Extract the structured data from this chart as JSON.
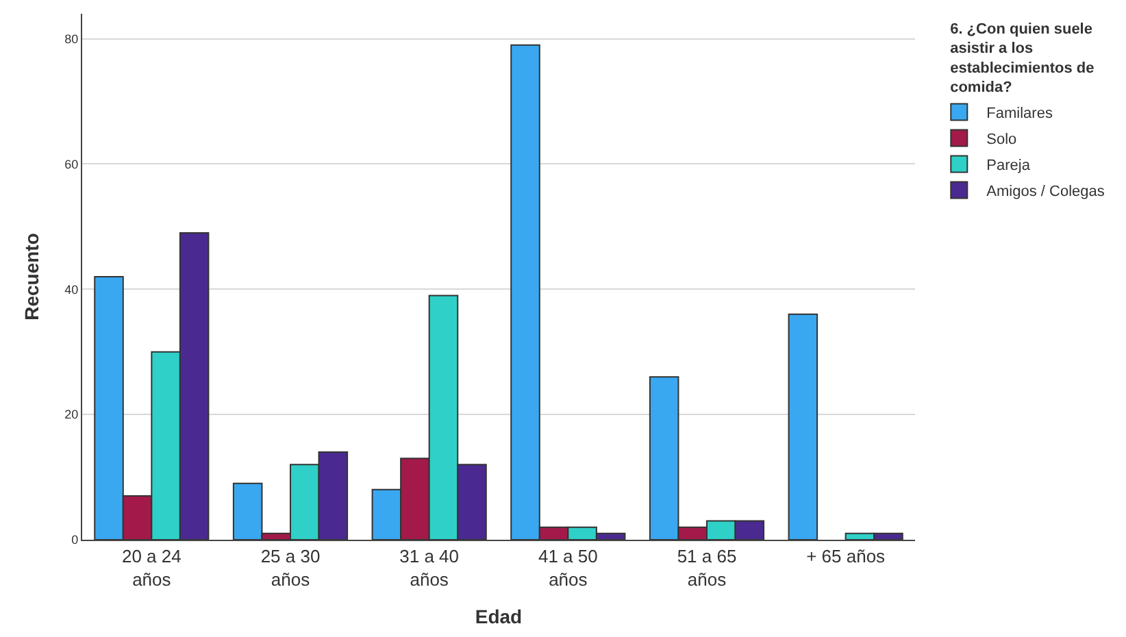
{
  "chart_data": {
    "type": "bar",
    "xlabel": "Edad",
    "ylabel": "Recuento",
    "legend_title": "6. ¿Con quien suele asistir a los establecimientos de comida?",
    "categories": [
      "20 a 24 años",
      "25 a 30 años",
      "31 a 40 años",
      "41 a 50 años",
      "51 a 65 años",
      "+ 65 años"
    ],
    "series": [
      {
        "name": "Familares",
        "color": "#3aa8f0",
        "values": [
          42,
          9,
          8,
          79,
          26,
          36
        ]
      },
      {
        "name": "Solo",
        "color": "#a31a4a",
        "values": [
          7,
          1,
          13,
          2,
          2,
          0
        ]
      },
      {
        "name": "Pareja",
        "color": "#2fd0c8",
        "values": [
          30,
          12,
          39,
          2,
          3,
          1
        ]
      },
      {
        "name": "Amigos / Colegas",
        "color": "#4a2a90",
        "values": [
          49,
          14,
          12,
          1,
          3,
          1
        ]
      }
    ],
    "ylim": [
      0,
      84
    ],
    "yticks": [
      0,
      20,
      40,
      60,
      80
    ],
    "grid": "y",
    "legend": "top right"
  }
}
